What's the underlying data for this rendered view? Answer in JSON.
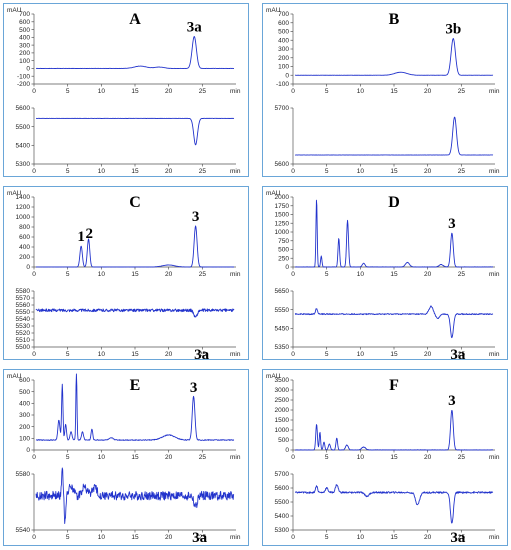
{
  "chart_data": [
    {
      "type": "line",
      "panel": "A",
      "peak_labels": [
        {
          "text": "3a",
          "x": 23.8
        }
      ],
      "x_unit": "min",
      "xlim": [
        0,
        30
      ],
      "x_ticks": [
        "0",
        "5",
        "10",
        "15",
        "20",
        "25"
      ],
      "top": {
        "y_unit": "mAU",
        "ylim": [
          -200,
          700
        ],
        "y_ticks": [
          "700",
          "600",
          "500",
          "400",
          "300",
          "200",
          "100",
          "0",
          "-100",
          "-200"
        ],
        "baseline": 0,
        "peaks": [
          [
            15.8,
            30,
            0.9
          ],
          [
            18.6,
            18,
            0.7
          ],
          [
            23.8,
            410,
            0.32
          ]
        ]
      },
      "bottom": {
        "y_ticks": [
          "5600",
          "5500",
          "5400",
          "5300"
        ],
        "ylim": [
          5300,
          5650
        ],
        "baseline": 5585,
        "peaks": [
          [
            24.0,
            -165,
            0.28
          ]
        ]
      }
    },
    {
      "type": "line",
      "panel": "B",
      "peak_labels": [
        {
          "text": "3b",
          "x": 23.8
        }
      ],
      "x_unit": "min",
      "xlim": [
        0,
        30
      ],
      "x_ticks": [
        "0",
        "5",
        "10",
        "15",
        "20",
        "25"
      ],
      "top": {
        "y_unit": "mAU",
        "ylim": [
          -100,
          700
        ],
        "y_ticks": [
          "700",
          "600",
          "500",
          "400",
          "300",
          "200",
          "100",
          "0",
          "-100"
        ],
        "baseline": 0,
        "peaks": [
          [
            16.0,
            35,
            0.9
          ],
          [
            23.8,
            420,
            0.32
          ]
        ]
      },
      "bottom": {
        "y_ticks": [
          "5700",
          "5600"
        ],
        "ylim": [
          5520,
          5800
        ],
        "baseline": 5565,
        "peaks": [
          [
            24.0,
            190,
            0.28
          ]
        ]
      }
    },
    {
      "type": "line",
      "panel": "C",
      "peak_labels": [
        {
          "text": "1",
          "x": 7.0
        },
        {
          "text": "2",
          "x": 8.2
        },
        {
          "text": "3",
          "x": 24.0
        },
        {
          "text": "3a",
          "x": 24.0
        }
      ],
      "x_unit": "min",
      "xlim": [
        0,
        30
      ],
      "x_ticks": [
        "0",
        "5",
        "10",
        "15",
        "20",
        "25"
      ],
      "top": {
        "y_unit": "mAU",
        "ylim": [
          0,
          1400
        ],
        "y_ticks": [
          "1400",
          "1200",
          "1000",
          "800",
          "600",
          "400",
          "200",
          "0"
        ],
        "baseline": 0,
        "peaks": [
          [
            7.0,
            420,
            0.18
          ],
          [
            8.1,
            560,
            0.18
          ],
          [
            20.0,
            40,
            0.9
          ],
          [
            24.0,
            820,
            0.22
          ]
        ]
      },
      "bottom": {
        "y_ticks": [
          "5580",
          "5570",
          "5560",
          "5550",
          "5540",
          "5530",
          "5520",
          "5510",
          "5500"
        ],
        "ylim": [
          5495,
          5585
        ],
        "baseline": 5554,
        "peaks": [
          [
            24.0,
            -11,
            0.25
          ]
        ]
      }
    },
    {
      "type": "line",
      "panel": "D",
      "peak_labels": [
        {
          "text": "3",
          "x": 23.6
        },
        {
          "text": "3a",
          "x": 23.6
        }
      ],
      "x_unit": "min",
      "xlim": [
        0,
        30
      ],
      "x_ticks": [
        "0",
        "5",
        "10",
        "15",
        "20",
        "25"
      ],
      "top": {
        "y_unit": "mAU",
        "ylim": [
          0,
          2000
        ],
        "y_ticks": [
          "2000",
          "1750",
          "1500",
          "1250",
          "1000",
          "750",
          "500",
          "250",
          "0"
        ],
        "baseline": 0,
        "peaks": [
          [
            3.5,
            1950,
            0.09
          ],
          [
            4.2,
            320,
            0.1
          ],
          [
            6.8,
            820,
            0.12
          ],
          [
            8.1,
            1330,
            0.14
          ],
          [
            10.5,
            110,
            0.2
          ],
          [
            17.0,
            130,
            0.3
          ],
          [
            22.0,
            70,
            0.3
          ],
          [
            23.6,
            970,
            0.2
          ]
        ]
      },
      "bottom": {
        "y_ticks": [
          "5650",
          "5550",
          "5450",
          "5350"
        ],
        "ylim": [
          5300,
          5700
        ],
        "baseline": 5535,
        "peaks": [
          [
            3.5,
            40,
            0.15
          ],
          [
            20.5,
            55,
            0.3
          ],
          [
            21.5,
            -30,
            0.3
          ],
          [
            23.6,
            -170,
            0.22
          ]
        ]
      }
    },
    {
      "type": "line",
      "panel": "E",
      "peak_labels": [
        {
          "text": "3",
          "x": 23.7
        },
        {
          "text": "3a",
          "x": 23.7
        }
      ],
      "x_unit": "min",
      "xlim": [
        0,
        30
      ],
      "x_ticks": [
        "0",
        "5",
        "10",
        "15",
        "20",
        "25"
      ],
      "top": {
        "y_unit": "mAU",
        "ylim": [
          -100,
          600
        ],
        "y_ticks": [
          "600",
          "500",
          "400",
          "300",
          "200",
          "100",
          "0"
        ],
        "baseline": 0,
        "peaks": [
          [
            3.7,
            200,
            0.15
          ],
          [
            4.2,
            560,
            0.1
          ],
          [
            4.7,
            160,
            0.12
          ],
          [
            5.5,
            80,
            0.15
          ],
          [
            6.3,
            720,
            0.08
          ],
          [
            7.2,
            80,
            0.15
          ],
          [
            8.6,
            110,
            0.12
          ],
          [
            11.5,
            20,
            0.3
          ],
          [
            20.0,
            50,
            0.9
          ],
          [
            23.7,
            440,
            0.2
          ]
        ]
      },
      "bottom": {
        "y_ticks": [
          "5580",
          "5540"
        ],
        "ylim": [
          5520,
          5610
        ],
        "baseline": 5575,
        "peaks": [
          [
            4.2,
            42,
            0.12
          ],
          [
            4.6,
            -45,
            0.1
          ],
          [
            5.5,
            18,
            0.3
          ],
          [
            7.5,
            14,
            0.4
          ],
          [
            9.0,
            12,
            0.4
          ],
          [
            24.0,
            -18,
            0.25
          ]
        ]
      }
    },
    {
      "type": "line",
      "panel": "F",
      "peak_labels": [
        {
          "text": "3",
          "x": 23.6
        },
        {
          "text": "3a",
          "x": 23.6
        }
      ],
      "x_unit": "min",
      "xlim": [
        0,
        30
      ],
      "x_ticks": [
        "0",
        "5",
        "10",
        "15",
        "20",
        "25"
      ],
      "top": {
        "y_unit": "mAU",
        "ylim": [
          0,
          3500
        ],
        "y_ticks": [
          "3500",
          "3000",
          "2500",
          "2000",
          "1500",
          "1000",
          "500",
          "0"
        ],
        "baseline": 0,
        "peaks": [
          [
            3.5,
            1300,
            0.12
          ],
          [
            4.0,
            900,
            0.1
          ],
          [
            4.6,
            400,
            0.12
          ],
          [
            5.4,
            300,
            0.15
          ],
          [
            6.5,
            600,
            0.12
          ],
          [
            8.0,
            250,
            0.2
          ],
          [
            10.5,
            150,
            0.3
          ],
          [
            23.6,
            2000,
            0.2
          ]
        ]
      },
      "bottom": {
        "y_ticks": [
          "5700",
          "5600",
          "5500",
          "5400",
          "5300"
        ],
        "ylim": [
          5250,
          5750
        ],
        "baseline": 5585,
        "peaks": [
          [
            3.5,
            60,
            0.15
          ],
          [
            5.0,
            40,
            0.2
          ],
          [
            6.5,
            70,
            0.2
          ],
          [
            11.0,
            -35,
            0.3
          ],
          [
            18.5,
            -110,
            0.3
          ],
          [
            23.6,
            -280,
            0.22
          ]
        ]
      }
    }
  ]
}
